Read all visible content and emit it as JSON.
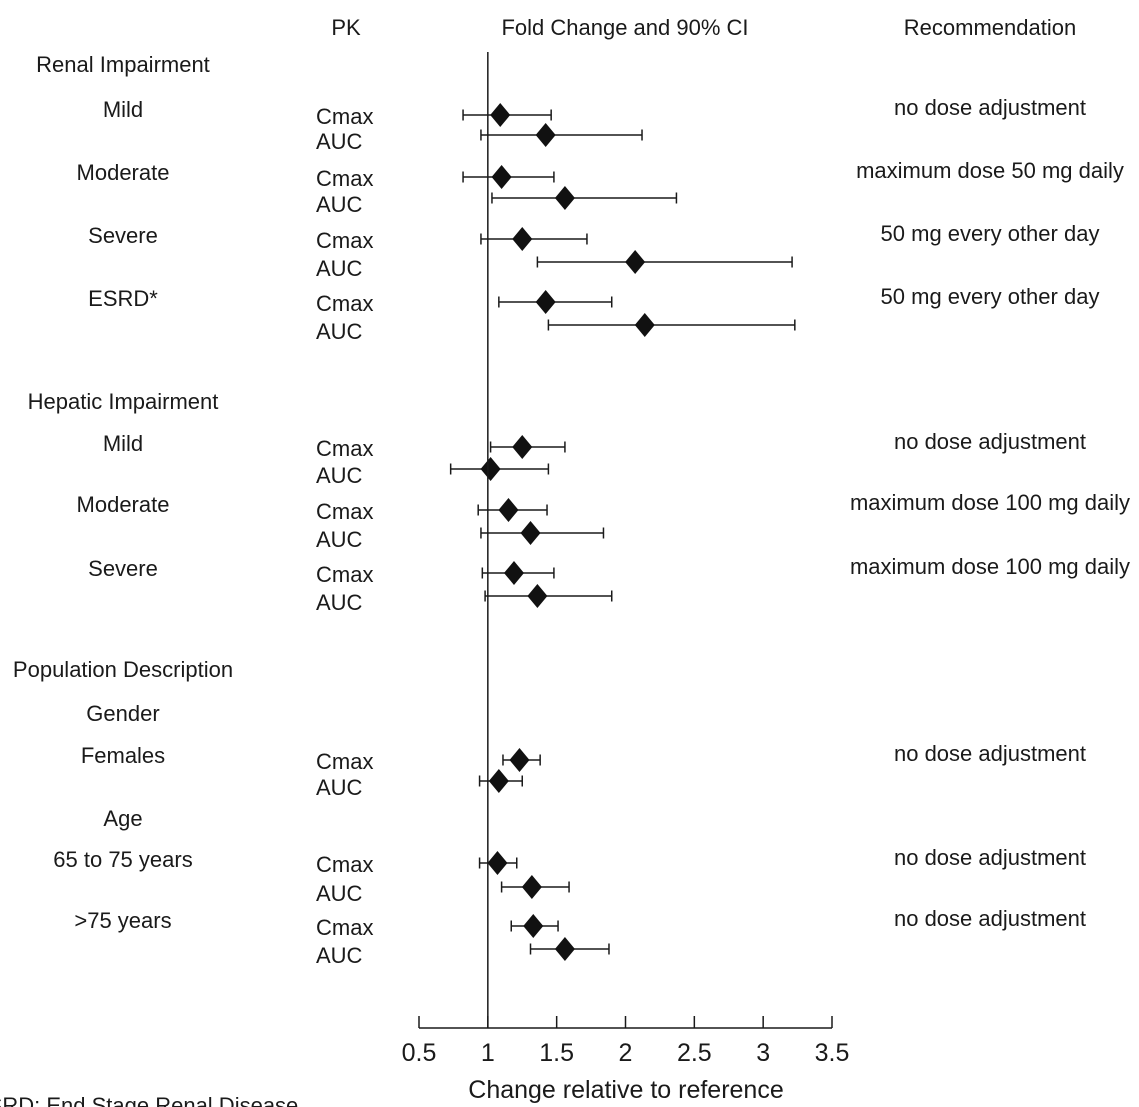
{
  "headers": {
    "pk": "PK",
    "ci": "Fold Change and 90% CI",
    "rec": "Recommendation"
  },
  "footnote": "ESRD: End Stage Renal Disease",
  "chart_data": {
    "type": "forest",
    "xlabel": "Change relative to reference",
    "xlim": [
      0.5,
      3.5
    ],
    "xticks": [
      "0.5",
      "1",
      "1.5",
      "2",
      "2.5",
      "3",
      "3.5"
    ],
    "reference_line": 1,
    "sections": [
      {
        "title": "Renal Impairment",
        "groups": [
          {
            "name": "Mild",
            "recommendation": "no dose adjustment",
            "rows": [
              {
                "pk": "Cmax",
                "estimate": 1.09,
                "lower": 0.82,
                "upper": 1.46
              },
              {
                "pk": "AUC",
                "estimate": 1.42,
                "lower": 0.95,
                "upper": 2.12
              }
            ]
          },
          {
            "name": "Moderate",
            "recommendation": "maximum dose 50 mg daily",
            "rows": [
              {
                "pk": "Cmax",
                "estimate": 1.1,
                "lower": 0.82,
                "upper": 1.48
              },
              {
                "pk": "AUC",
                "estimate": 1.56,
                "lower": 1.03,
                "upper": 2.37
              }
            ]
          },
          {
            "name": "Severe",
            "recommendation": "50 mg every other day",
            "rows": [
              {
                "pk": "Cmax",
                "estimate": 1.25,
                "lower": 0.95,
                "upper": 1.72
              },
              {
                "pk": "AUC",
                "estimate": 2.07,
                "lower": 1.36,
                "upper": 3.21
              }
            ]
          },
          {
            "name": "ESRD*",
            "recommendation": "50 mg every other day",
            "rows": [
              {
                "pk": "Cmax",
                "estimate": 1.42,
                "lower": 1.08,
                "upper": 1.9
              },
              {
                "pk": "AUC",
                "estimate": 2.14,
                "lower": 1.44,
                "upper": 3.23
              }
            ]
          }
        ]
      },
      {
        "title": "Hepatic Impairment",
        "groups": [
          {
            "name": "Mild",
            "recommendation": "no dose adjustment",
            "rows": [
              {
                "pk": "Cmax",
                "estimate": 1.25,
                "lower": 1.02,
                "upper": 1.56
              },
              {
                "pk": "AUC",
                "estimate": 1.02,
                "lower": 0.73,
                "upper": 1.44
              }
            ]
          },
          {
            "name": "Moderate",
            "recommendation": "maximum dose 100 mg daily",
            "rows": [
              {
                "pk": "Cmax",
                "estimate": 1.15,
                "lower": 0.93,
                "upper": 1.43
              },
              {
                "pk": "AUC",
                "estimate": 1.31,
                "lower": 0.95,
                "upper": 1.84
              }
            ]
          },
          {
            "name": "Severe",
            "recommendation": "maximum dose 100 mg daily",
            "rows": [
              {
                "pk": "Cmax",
                "estimate": 1.19,
                "lower": 0.96,
                "upper": 1.48
              },
              {
                "pk": "AUC",
                "estimate": 1.36,
                "lower": 0.98,
                "upper": 1.9
              }
            ]
          }
        ]
      },
      {
        "title": "Population Description",
        "groups": [
          {
            "name": "Gender",
            "recommendation": "",
            "rows": []
          },
          {
            "name": "Females",
            "recommendation": "no dose adjustment",
            "rows": [
              {
                "pk": "Cmax",
                "estimate": 1.23,
                "lower": 1.11,
                "upper": 1.38
              },
              {
                "pk": "AUC",
                "estimate": 1.08,
                "lower": 0.94,
                "upper": 1.25
              }
            ]
          },
          {
            "name": "Age",
            "recommendation": "",
            "rows": []
          },
          {
            "name": "65 to 75 years",
            "recommendation": "no dose adjustment",
            "rows": [
              {
                "pk": "Cmax",
                "estimate": 1.07,
                "lower": 0.94,
                "upper": 1.21
              },
              {
                "pk": "AUC",
                "estimate": 1.32,
                "lower": 1.1,
                "upper": 1.59
              }
            ]
          },
          {
            "name": ">75 years",
            "recommendation": "no dose adjustment",
            "rows": [
              {
                "pk": "Cmax",
                "estimate": 1.33,
                "lower": 1.17,
                "upper": 1.51
              },
              {
                "pk": "AUC",
                "estimate": 1.56,
                "lower": 1.31,
                "upper": 1.88
              }
            ]
          }
        ]
      }
    ]
  }
}
